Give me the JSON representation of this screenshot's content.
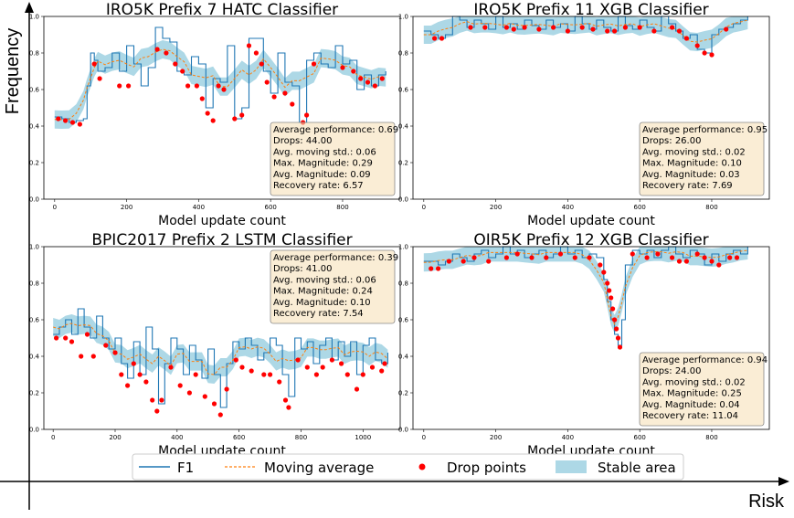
{
  "y_axis_label": "Frequency",
  "x_axis_label": "Risk",
  "legend": {
    "f1": "F1",
    "moving_average": "Moving average",
    "drop_points": "Drop points",
    "stable_area": "Stable area"
  },
  "colors": {
    "f1": "#1f77b4",
    "moving_average": "#ff7f0e",
    "drop_points": "#ff0000",
    "stable_area": "#add8e6"
  },
  "chart_data": [
    {
      "type": "line",
      "title": "IRO5K Prefix 7 HATC Classifier",
      "xlabel": "Model update count",
      "xlim": [
        -30,
        960
      ],
      "ylim": [
        0,
        1.0
      ],
      "xticks": [
        0,
        200,
        400,
        600,
        800
      ],
      "yticks": [
        0.0,
        0.2,
        0.4,
        0.6,
        0.8,
        1.0
      ],
      "f1": {
        "x": [
          0,
          20,
          40,
          60,
          80,
          90,
          100,
          110,
          120,
          140,
          160,
          180,
          200,
          220,
          240,
          260,
          280,
          300,
          320,
          340,
          360,
          380,
          400,
          420,
          440,
          460,
          480,
          500,
          520,
          540,
          560,
          580,
          600,
          620,
          640,
          660,
          680,
          700,
          720,
          740,
          760,
          780,
          800,
          820,
          840,
          860,
          880,
          900,
          920
        ],
        "y": [
          0.45,
          0.44,
          0.42,
          0.43,
          0.44,
          0.62,
          0.8,
          0.76,
          0.7,
          0.72,
          0.8,
          0.7,
          0.84,
          0.74,
          0.62,
          0.72,
          0.94,
          0.88,
          0.86,
          0.7,
          0.68,
          0.78,
          0.74,
          0.5,
          0.66,
          0.64,
          0.84,
          0.44,
          0.5,
          0.88,
          0.88,
          0.7,
          0.58,
          0.8,
          0.64,
          0.62,
          0.42,
          0.76,
          0.8,
          0.74,
          0.72,
          0.84,
          0.74,
          0.76,
          0.6,
          0.68,
          0.62,
          0.68,
          0.7
        ]
      },
      "drop_points": {
        "x": [
          10,
          30,
          50,
          70,
          110,
          125,
          180,
          205,
          285,
          310,
          335,
          355,
          370,
          395,
          410,
          425,
          440,
          455,
          470,
          500,
          520,
          540,
          560,
          575,
          590,
          610,
          640,
          660,
          690,
          700,
          720,
          800,
          830,
          850,
          870,
          890,
          910
        ],
        "y": [
          0.44,
          0.43,
          0.42,
          0.41,
          0.74,
          0.66,
          0.62,
          0.62,
          0.82,
          0.8,
          0.74,
          0.7,
          0.62,
          0.62,
          0.55,
          0.47,
          0.43,
          0.62,
          0.6,
          0.44,
          0.46,
          0.84,
          0.8,
          0.74,
          0.64,
          0.56,
          0.58,
          0.52,
          0.42,
          0.46,
          0.74,
          0.72,
          0.7,
          0.66,
          0.64,
          0.62,
          0.66
        ]
      },
      "stats": [
        "Average performance: 0.69",
        "Drops: 44.00",
        "Avg. moving std.: 0.06",
        "Max. Magnitude: 0.29",
        "Avg. Magnitude: 0.09",
        "Recovery rate: 6.57"
      ],
      "stats_position": "bottom-right"
    },
    {
      "type": "line",
      "title": "IRO5K Prefix 11 XGB Classifier",
      "xlabel": "Model update count",
      "xlim": [
        -30,
        960
      ],
      "ylim": [
        0,
        1.0
      ],
      "xticks": [
        0,
        200,
        400,
        600,
        800
      ],
      "yticks": [
        0.0,
        0.2,
        0.4,
        0.6,
        0.8,
        1.0
      ],
      "f1": {
        "x": [
          0,
          20,
          40,
          60,
          80,
          100,
          120,
          140,
          160,
          180,
          200,
          220,
          240,
          260,
          280,
          300,
          320,
          340,
          360,
          380,
          400,
          420,
          440,
          460,
          480,
          500,
          520,
          540,
          560,
          580,
          600,
          620,
          640,
          660,
          680,
          700,
          720,
          740,
          760,
          780,
          800,
          820,
          840,
          860,
          880,
          900
        ],
        "y": [
          0.92,
          0.9,
          0.88,
          0.9,
          1.0,
          0.98,
          0.94,
          0.98,
          0.96,
          0.93,
          1.0,
          0.94,
          0.96,
          0.93,
          0.98,
          0.95,
          0.93,
          0.98,
          0.94,
          0.96,
          0.92,
          1.0,
          0.96,
          0.93,
          0.98,
          0.94,
          0.92,
          1.0,
          0.95,
          0.93,
          0.98,
          0.94,
          0.92,
          1.0,
          0.96,
          0.92,
          0.88,
          0.9,
          0.82,
          0.8,
          0.9,
          0.93,
          0.94,
          0.96,
          0.98,
          1.0
        ]
      },
      "drop_points": {
        "x": [
          30,
          50,
          130,
          170,
          230,
          250,
          280,
          320,
          360,
          400,
          440,
          470,
          510,
          530,
          560,
          600,
          640,
          690,
          710,
          730,
          760,
          780,
          800,
          840
        ],
        "y": [
          0.88,
          0.88,
          0.94,
          0.94,
          0.94,
          0.93,
          0.94,
          0.93,
          0.94,
          0.92,
          0.94,
          0.93,
          0.92,
          0.92,
          0.94,
          0.94,
          0.92,
          0.94,
          0.92,
          0.88,
          0.84,
          0.8,
          0.79,
          0.93
        ]
      },
      "stats": [
        "Average performance: 0.95",
        "Drops: 26.00",
        "Avg. moving std.: 0.02",
        "Max. Magnitude: 0.10",
        "Avg. Magnitude: 0.03",
        "Recovery rate: 7.69"
      ],
      "stats_position": "bottom-right"
    },
    {
      "type": "line",
      "title": "BPIC2017 Prefix 2 LSTM Classifier",
      "xlabel": "Model update count",
      "xlim": [
        -30,
        1120
      ],
      "ylim": [
        0,
        1.0
      ],
      "xticks": [
        0,
        200,
        400,
        600,
        800,
        1000
      ],
      "yticks": [
        0.0,
        0.2,
        0.4,
        0.6,
        0.8,
        1.0
      ],
      "f1": {
        "x": [
          0,
          20,
          40,
          60,
          80,
          100,
          120,
          140,
          160,
          180,
          200,
          220,
          240,
          260,
          280,
          300,
          320,
          340,
          360,
          380,
          400,
          420,
          440,
          460,
          480,
          500,
          520,
          540,
          560,
          580,
          600,
          620,
          640,
          660,
          680,
          700,
          720,
          740,
          760,
          780,
          800,
          820,
          840,
          860,
          880,
          900,
          920,
          940,
          960,
          980,
          1000,
          1020,
          1040,
          1060,
          1080
        ],
        "y": [
          0.52,
          0.56,
          0.6,
          0.52,
          0.66,
          0.56,
          0.5,
          0.62,
          0.5,
          0.44,
          0.5,
          0.36,
          0.28,
          0.48,
          0.3,
          0.56,
          0.44,
          0.14,
          0.36,
          0.5,
          0.44,
          0.3,
          0.46,
          0.38,
          0.28,
          0.44,
          0.3,
          0.12,
          0.36,
          0.48,
          0.44,
          0.5,
          0.46,
          0.38,
          0.42,
          0.5,
          0.46,
          0.3,
          0.18,
          0.5,
          0.44,
          0.48,
          0.36,
          0.46,
          0.5,
          0.38,
          0.48,
          0.4,
          0.48,
          0.3,
          0.46,
          0.5,
          0.38,
          0.36,
          0.42
        ]
      },
      "drop_points": {
        "x": [
          10,
          40,
          60,
          90,
          110,
          130,
          170,
          200,
          220,
          240,
          260,
          280,
          300,
          320,
          335,
          350,
          380,
          410,
          440,
          460,
          490,
          520,
          540,
          560,
          590,
          610,
          640,
          680,
          700,
          730,
          750,
          760,
          790,
          820,
          850,
          870,
          900,
          930,
          950,
          980,
          1000,
          1030,
          1060,
          1070
        ],
        "y": [
          0.5,
          0.5,
          0.48,
          0.4,
          0.52,
          0.4,
          0.46,
          0.42,
          0.3,
          0.24,
          0.36,
          0.3,
          0.26,
          0.16,
          0.1,
          0.16,
          0.34,
          0.24,
          0.2,
          0.3,
          0.18,
          0.14,
          0.08,
          0.22,
          0.38,
          0.34,
          0.32,
          0.3,
          0.3,
          0.26,
          0.16,
          0.12,
          0.38,
          0.34,
          0.3,
          0.34,
          0.38,
          0.36,
          0.3,
          0.22,
          0.3,
          0.34,
          0.32,
          0.36
        ]
      },
      "stats": [
        "Average performance: 0.39",
        "Drops: 41.00",
        "Avg. moving std.: 0.06",
        "Max. Magnitude: 0.24",
        "Avg. Magnitude: 0.10",
        "Recovery rate: 7.54"
      ],
      "stats_position": "top-right"
    },
    {
      "type": "line",
      "title": "OIR5K Prefix 12 XGB Classifier",
      "xlabel": "Model update count",
      "xlim": [
        -30,
        960
      ],
      "ylim": [
        0,
        1.0
      ],
      "xticks": [
        0,
        200,
        400,
        600,
        800
      ],
      "yticks": [
        0.0,
        0.2,
        0.4,
        0.6,
        0.8,
        1.0
      ],
      "f1": {
        "x": [
          0,
          20,
          40,
          60,
          80,
          100,
          120,
          140,
          160,
          180,
          200,
          220,
          240,
          260,
          280,
          300,
          320,
          340,
          360,
          380,
          400,
          420,
          440,
          460,
          480,
          500,
          510,
          520,
          530,
          540,
          550,
          560,
          580,
          600,
          620,
          640,
          660,
          680,
          700,
          720,
          740,
          760,
          780,
          800,
          820,
          840,
          860,
          880,
          900
        ],
        "y": [
          0.92,
          0.92,
          0.9,
          0.92,
          0.96,
          0.94,
          0.92,
          0.96,
          0.98,
          0.94,
          0.96,
          1.0,
          0.96,
          0.98,
          0.94,
          0.96,
          0.98,
          0.94,
          0.96,
          1.0,
          0.96,
          0.98,
          0.94,
          0.96,
          0.94,
          0.82,
          0.7,
          0.6,
          0.52,
          0.46,
          0.6,
          0.9,
          0.98,
          0.96,
          0.98,
          0.94,
          0.98,
          1.0,
          0.96,
          0.94,
          0.98,
          0.96,
          0.9,
          0.96,
          0.92,
          0.96,
          0.98,
          0.96,
          1.0
        ]
      },
      "drop_points": {
        "x": [
          20,
          40,
          70,
          110,
          140,
          180,
          230,
          260,
          300,
          340,
          380,
          420,
          460,
          490,
          500,
          510,
          515,
          520,
          525,
          530,
          535,
          540,
          545,
          580,
          620,
          650,
          690,
          710,
          730,
          760,
          780,
          800,
          820,
          850,
          870
        ],
        "y": [
          0.88,
          0.88,
          0.92,
          0.92,
          0.94,
          0.92,
          0.94,
          0.96,
          0.94,
          0.94,
          0.96,
          0.94,
          0.94,
          0.9,
          0.86,
          0.8,
          0.76,
          0.72,
          0.66,
          0.6,
          0.55,
          0.5,
          0.45,
          0.96,
          0.94,
          0.96,
          0.94,
          0.92,
          0.92,
          0.96,
          0.94,
          0.92,
          0.9,
          0.94,
          0.94
        ]
      },
      "stats": [
        "Average performance: 0.94",
        "Drops: 24.00",
        "Avg. moving std.: 0.02",
        "Max. Magnitude: 0.25",
        "Avg. Magnitude: 0.04",
        "Recovery rate: 11.04"
      ],
      "stats_position": "bottom-right"
    }
  ]
}
